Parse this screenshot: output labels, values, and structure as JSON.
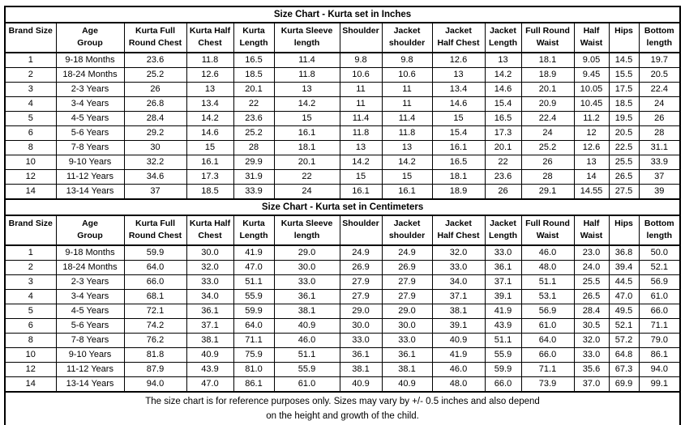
{
  "page_title": "Size Chart - Kurta set",
  "colors": {
    "border": "#000000",
    "text": "#000000",
    "background": "#ffffff"
  },
  "columns": [
    [
      "Brand Size"
    ],
    [
      "Age",
      "Group"
    ],
    [
      "Kurta Full",
      "Round Chest"
    ],
    [
      "Kurta Half",
      "Chest"
    ],
    [
      "Kurta",
      "Length"
    ],
    [
      "Kurta Sleeve",
      "length"
    ],
    [
      "Shoulder"
    ],
    [
      "Jacket",
      "shoulder"
    ],
    [
      "Jacket",
      "Half Chest"
    ],
    [
      "Jacket",
      "Length"
    ],
    [
      "Full Round",
      "Waist"
    ],
    [
      "Half",
      "Waist"
    ],
    [
      "Hips"
    ],
    [
      "Bottom",
      "length"
    ]
  ],
  "sections": [
    {
      "id": "inches",
      "title": "Size Chart - Kurta set in Inches",
      "rows": [
        [
          "1",
          "9-18 Months",
          "23.6",
          "11.8",
          "16.5",
          "11.4",
          "9.8",
          "9.8",
          "12.6",
          "13",
          "18.1",
          "9.05",
          "14.5",
          "19.7"
        ],
        [
          "2",
          "18-24 Months",
          "25.2",
          "12.6",
          "18.5",
          "11.8",
          "10.6",
          "10.6",
          "13",
          "14.2",
          "18.9",
          "9.45",
          "15.5",
          "20.5"
        ],
        [
          "3",
          "2-3 Years",
          "26",
          "13",
          "20.1",
          "13",
          "11",
          "11",
          "13.4",
          "14.6",
          "20.1",
          "10.05",
          "17.5",
          "22.4"
        ],
        [
          "4",
          "3-4 Years",
          "26.8",
          "13.4",
          "22",
          "14.2",
          "11",
          "11",
          "14.6",
          "15.4",
          "20.9",
          "10.45",
          "18.5",
          "24"
        ],
        [
          "5",
          "4-5 Years",
          "28.4",
          "14.2",
          "23.6",
          "15",
          "11.4",
          "11.4",
          "15",
          "16.5",
          "22.4",
          "11.2",
          "19.5",
          "26"
        ],
        [
          "6",
          "5-6 Years",
          "29.2",
          "14.6",
          "25.2",
          "16.1",
          "11.8",
          "11.8",
          "15.4",
          "17.3",
          "24",
          "12",
          "20.5",
          "28"
        ],
        [
          "8",
          "7-8 Years",
          "30",
          "15",
          "28",
          "18.1",
          "13",
          "13",
          "16.1",
          "20.1",
          "25.2",
          "12.6",
          "22.5",
          "31.1"
        ],
        [
          "10",
          "9-10 Years",
          "32.2",
          "16.1",
          "29.9",
          "20.1",
          "14.2",
          "14.2",
          "16.5",
          "22",
          "26",
          "13",
          "25.5",
          "33.9"
        ],
        [
          "12",
          "11-12 Years",
          "34.6",
          "17.3",
          "31.9",
          "22",
          "15",
          "15",
          "18.1",
          "23.6",
          "28",
          "14",
          "26.5",
          "37"
        ],
        [
          "14",
          "13-14 Years",
          "37",
          "18.5",
          "33.9",
          "24",
          "16.1",
          "16.1",
          "18.9",
          "26",
          "29.1",
          "14.55",
          "27.5",
          "39"
        ]
      ]
    },
    {
      "id": "centimeters",
      "title": "Size Chart - Kurta set in Centimeters",
      "rows": [
        [
          "1",
          "9-18 Months",
          "59.9",
          "30.0",
          "41.9",
          "29.0",
          "24.9",
          "24.9",
          "32.0",
          "33.0",
          "46.0",
          "23.0",
          "36.8",
          "50.0"
        ],
        [
          "2",
          "18-24 Months",
          "64.0",
          "32.0",
          "47.0",
          "30.0",
          "26.9",
          "26.9",
          "33.0",
          "36.1",
          "48.0",
          "24.0",
          "39.4",
          "52.1"
        ],
        [
          "3",
          "2-3 Years",
          "66.0",
          "33.0",
          "51.1",
          "33.0",
          "27.9",
          "27.9",
          "34.0",
          "37.1",
          "51.1",
          "25.5",
          "44.5",
          "56.9"
        ],
        [
          "4",
          "3-4 Years",
          "68.1",
          "34.0",
          "55.9",
          "36.1",
          "27.9",
          "27.9",
          "37.1",
          "39.1",
          "53.1",
          "26.5",
          "47.0",
          "61.0"
        ],
        [
          "5",
          "4-5 Years",
          "72.1",
          "36.1",
          "59.9",
          "38.1",
          "29.0",
          "29.0",
          "38.1",
          "41.9",
          "56.9",
          "28.4",
          "49.5",
          "66.0"
        ],
        [
          "6",
          "5-6 Years",
          "74.2",
          "37.1",
          "64.0",
          "40.9",
          "30.0",
          "30.0",
          "39.1",
          "43.9",
          "61.0",
          "30.5",
          "52.1",
          "71.1"
        ],
        [
          "8",
          "7-8 Years",
          "76.2",
          "38.1",
          "71.1",
          "46.0",
          "33.0",
          "33.0",
          "40.9",
          "51.1",
          "64.0",
          "32.0",
          "57.2",
          "79.0"
        ],
        [
          "10",
          "9-10 Years",
          "81.8",
          "40.9",
          "75.9",
          "51.1",
          "36.1",
          "36.1",
          "41.9",
          "55.9",
          "66.0",
          "33.0",
          "64.8",
          "86.1"
        ],
        [
          "12",
          "11-12 Years",
          "87.9",
          "43.9",
          "81.0",
          "55.9",
          "38.1",
          "38.1",
          "46.0",
          "59.9",
          "71.1",
          "35.6",
          "67.3",
          "94.0"
        ],
        [
          "14",
          "13-14 Years",
          "94.0",
          "47.0",
          "86.1",
          "61.0",
          "40.9",
          "40.9",
          "48.0",
          "66.0",
          "73.9",
          "37.0",
          "69.9",
          "99.1"
        ]
      ]
    }
  ],
  "footer": {
    "line1": "The size chart is for reference purposes only. Sizes may vary by +/- 0.5 inches and also depend",
    "line2": "on the height and growth of the child."
  }
}
